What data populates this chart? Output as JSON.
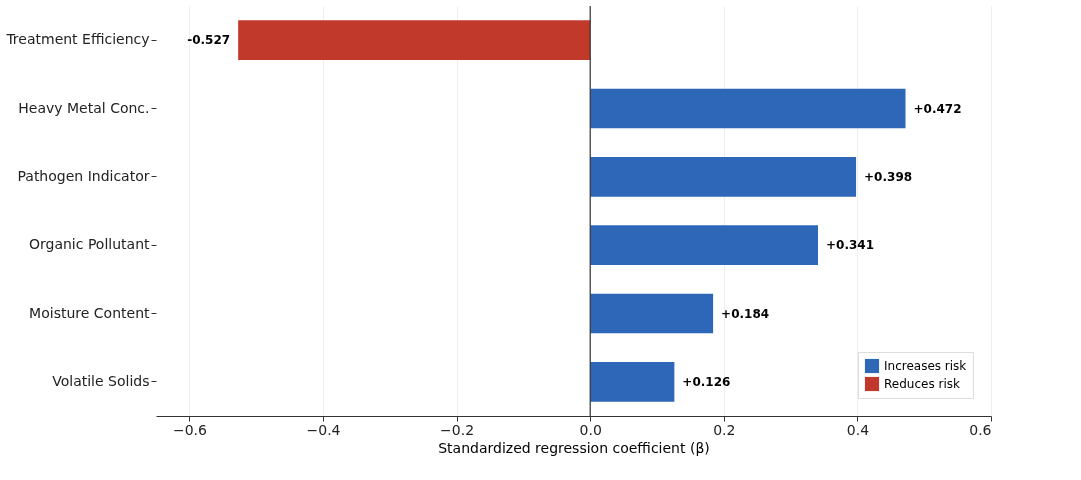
{
  "chart_data": {
    "type": "bar",
    "orientation": "horizontal",
    "xlabel": "Standardized regression coefficient (β)",
    "categories": [
      "Treatment Efficiency",
      "Heavy Metal Conc.",
      "Pathogen Indicator",
      "Organic Pollutant",
      "Moisture Content",
      "Volatile Solids"
    ],
    "series": [
      {
        "name": "Increases risk",
        "color": "#2e66b8",
        "values": [
          null,
          0.472,
          0.398,
          0.341,
          0.184,
          0.126
        ],
        "value_labels": [
          null,
          "+0.472",
          "+0.398",
          "+0.341",
          "+0.184",
          "+0.126"
        ]
      },
      {
        "name": "Reduces risk",
        "color": "#c0392b",
        "values": [
          -0.527,
          null,
          null,
          null,
          null,
          null
        ],
        "value_labels": [
          "-0.527",
          null,
          null,
          null,
          null,
          null
        ]
      }
    ],
    "xlim": [
      -0.65,
      0.6
    ],
    "xticks": [
      {
        "value": -0.6,
        "label": "−0.6"
      },
      {
        "value": -0.4,
        "label": "−0.4"
      },
      {
        "value": -0.2,
        "label": "−0.2"
      },
      {
        "value": 0,
        "label": "0.0"
      },
      {
        "value": 0.2,
        "label": "0.2"
      },
      {
        "value": 0.4,
        "label": "0.4"
      },
      {
        "value": 0.6,
        "label": "0.6"
      }
    ],
    "ref_lines": [
      {
        "axis": "x",
        "value": 0,
        "color": "#333333"
      }
    ],
    "grid": "x",
    "legend": "bottom right"
  }
}
